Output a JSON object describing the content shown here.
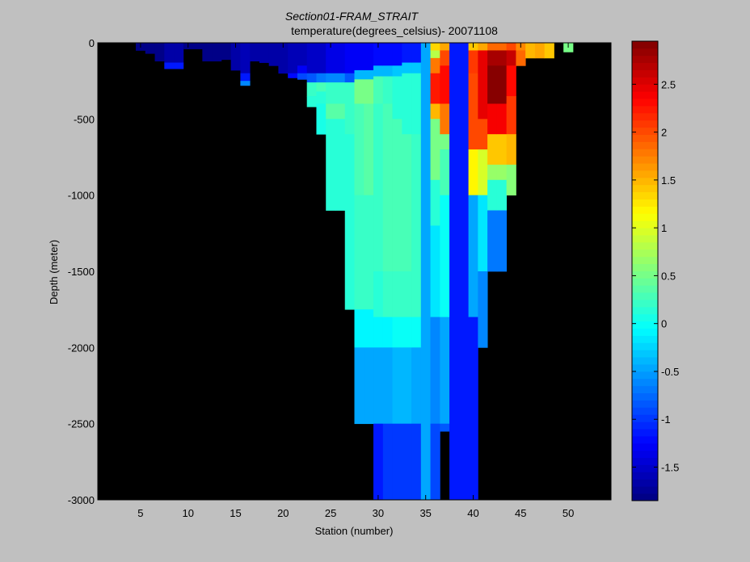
{
  "chart_data": {
    "type": "heatmap",
    "title": "Section01-FRAM_STRAIT",
    "subtitle": "temperature(degrees_celsius)- 20071108",
    "xlabel": "Station (number)",
    "ylabel": "Depth (meter)",
    "xlim": [
      0.5,
      54.5
    ],
    "ylim": [
      -3000,
      0
    ],
    "x_ticks": [
      "5",
      "10",
      "15",
      "20",
      "25",
      "30",
      "35",
      "40",
      "45",
      "50"
    ],
    "y_ticks": [
      "0",
      "-500",
      "-1000",
      "-1500",
      "-2000",
      "-2500",
      "-3000"
    ],
    "colorbar": {
      "range": [
        -1.85,
        2.95
      ],
      "ticks": [
        "-1.5",
        "-1",
        "-0.5",
        "0",
        "0.5",
        "1",
        "1.5",
        "2",
        "2.5"
      ],
      "colormap": "jet"
    },
    "background_color": "#000000",
    "stations": [
      {
        "x": 5,
        "layers": [
          [
            0,
            50,
            -1.8
          ]
        ]
      },
      {
        "x": 6,
        "layers": [
          [
            0,
            70,
            -1.8
          ]
        ]
      },
      {
        "x": 7,
        "layers": [
          [
            0,
            120,
            -1.8
          ]
        ]
      },
      {
        "x": 8,
        "layers": [
          [
            0,
            130,
            -1.7
          ],
          [
            130,
            170,
            -1.1
          ]
        ]
      },
      {
        "x": 9,
        "layers": [
          [
            0,
            130,
            -1.7
          ],
          [
            130,
            170,
            -1.1
          ]
        ]
      },
      {
        "x": 10,
        "layers": [
          [
            0,
            40,
            -1.8
          ]
        ]
      },
      {
        "x": 11,
        "layers": [
          [
            0,
            40,
            -1.8
          ]
        ]
      },
      {
        "x": 12,
        "layers": [
          [
            0,
            120,
            -1.8
          ]
        ]
      },
      {
        "x": 13,
        "layers": [
          [
            0,
            120,
            -1.8
          ]
        ]
      },
      {
        "x": 14,
        "layers": [
          [
            0,
            110,
            -1.8
          ]
        ]
      },
      {
        "x": 15,
        "layers": [
          [
            0,
            180,
            -1.7
          ]
        ]
      },
      {
        "x": 16,
        "layers": [
          [
            0,
            200,
            -1.6
          ],
          [
            200,
            250,
            -1.1
          ],
          [
            250,
            280,
            -0.6
          ]
        ]
      },
      {
        "x": 17,
        "layers": [
          [
            0,
            120,
            -1.7
          ]
        ]
      },
      {
        "x": 18,
        "layers": [
          [
            0,
            130,
            -1.7
          ]
        ]
      },
      {
        "x": 19,
        "layers": [
          [
            0,
            150,
            -1.7
          ]
        ]
      },
      {
        "x": 20,
        "layers": [
          [
            0,
            200,
            -1.7
          ]
        ]
      },
      {
        "x": 21,
        "layers": [
          [
            0,
            200,
            -1.6
          ],
          [
            200,
            230,
            -1.2
          ]
        ]
      },
      {
        "x": 22,
        "layers": [
          [
            0,
            150,
            -1.6
          ],
          [
            150,
            200,
            -1.3
          ],
          [
            200,
            240,
            -0.9
          ]
        ]
      },
      {
        "x": 23,
        "layers": [
          [
            0,
            200,
            -1.5
          ],
          [
            200,
            260,
            -0.8
          ],
          [
            260,
            350,
            0.2
          ],
          [
            350,
            420,
            0.15
          ]
        ]
      },
      {
        "x": 24,
        "layers": [
          [
            0,
            200,
            -1.5
          ],
          [
            200,
            260,
            -0.7
          ],
          [
            260,
            320,
            0.3
          ],
          [
            320,
            400,
            0.1
          ],
          [
            400,
            600,
            0.05
          ]
        ]
      },
      {
        "x": 25,
        "layers": [
          [
            0,
            200,
            -1.4
          ],
          [
            200,
            260,
            -0.6
          ],
          [
            260,
            400,
            0.2
          ],
          [
            400,
            500,
            0.35
          ],
          [
            500,
            1100,
            0.1
          ]
        ]
      },
      {
        "x": 26,
        "layers": [
          [
            0,
            200,
            -1.4
          ],
          [
            200,
            260,
            -0.6
          ],
          [
            260,
            400,
            0.2
          ],
          [
            400,
            500,
            0.35
          ],
          [
            500,
            1100,
            0.1
          ]
        ]
      },
      {
        "x": 27,
        "layers": [
          [
            0,
            200,
            -1.3
          ],
          [
            200,
            260,
            -0.8
          ],
          [
            260,
            600,
            0.2
          ],
          [
            600,
            1750,
            0.15
          ]
        ]
      },
      {
        "x": 28,
        "layers": [
          [
            0,
            180,
            -1.3
          ],
          [
            180,
            240,
            -0.4
          ],
          [
            240,
            400,
            0.5
          ],
          [
            400,
            1000,
            0.3
          ],
          [
            1000,
            1750,
            0.2
          ],
          [
            1750,
            2000,
            -0.1
          ],
          [
            2000,
            2500,
            -0.5
          ]
        ]
      },
      {
        "x": 29,
        "layers": [
          [
            0,
            180,
            -1.3
          ],
          [
            180,
            240,
            -0.4
          ],
          [
            240,
            400,
            0.5
          ],
          [
            400,
            1000,
            0.35
          ],
          [
            1000,
            1750,
            0.2
          ],
          [
            1750,
            2000,
            -0.1
          ],
          [
            2000,
            2500,
            -0.5
          ]
        ]
      },
      {
        "x": 30,
        "layers": [
          [
            0,
            150,
            -1.2
          ],
          [
            150,
            220,
            -0.4
          ],
          [
            220,
            400,
            0.3
          ],
          [
            400,
            1500,
            0.25
          ],
          [
            1500,
            1800,
            0.15
          ],
          [
            1800,
            2000,
            -0.1
          ],
          [
            2000,
            2500,
            -0.45
          ],
          [
            2500,
            3000,
            -1.1
          ]
        ]
      },
      {
        "x": 31,
        "layers": [
          [
            0,
            150,
            -1.2
          ],
          [
            150,
            220,
            -0.4
          ],
          [
            220,
            400,
            0.2
          ],
          [
            400,
            1500,
            0.3
          ],
          [
            1500,
            1800,
            0.2
          ],
          [
            1800,
            2000,
            -0.05
          ],
          [
            2000,
            2500,
            -0.45
          ],
          [
            2500,
            3000,
            -1.0
          ]
        ]
      },
      {
        "x": 32,
        "layers": [
          [
            0,
            150,
            -1.2
          ],
          [
            150,
            220,
            -0.3
          ],
          [
            220,
            500,
            0.1
          ],
          [
            500,
            1500,
            0.3
          ],
          [
            1500,
            1800,
            0.2
          ],
          [
            1800,
            2000,
            0.0
          ],
          [
            2000,
            2500,
            -0.4
          ],
          [
            2500,
            3000,
            -1.0
          ]
        ]
      },
      {
        "x": 33,
        "layers": [
          [
            0,
            130,
            -1.1
          ],
          [
            130,
            200,
            -0.3
          ],
          [
            200,
            600,
            0.1
          ],
          [
            600,
            1500,
            0.3
          ],
          [
            1500,
            1800,
            0.2
          ],
          [
            1800,
            2000,
            0.0
          ],
          [
            2000,
            2500,
            -0.4
          ],
          [
            2500,
            3000,
            -1.0
          ]
        ]
      },
      {
        "x": 34,
        "layers": [
          [
            0,
            130,
            -1.1
          ],
          [
            130,
            200,
            -0.3
          ],
          [
            200,
            600,
            0.15
          ],
          [
            600,
            1500,
            0.25
          ],
          [
            1500,
            1800,
            0.2
          ],
          [
            1800,
            2000,
            0.0
          ],
          [
            2000,
            2500,
            -0.45
          ],
          [
            2500,
            3000,
            -1.0
          ]
        ]
      },
      {
        "x": 35,
        "layers": [
          [
            0,
            3000,
            -0.5
          ]
        ]
      },
      {
        "x": 36,
        "layers": [
          [
            0,
            50,
            1.3
          ],
          [
            50,
            100,
            0.8
          ],
          [
            100,
            200,
            1.8
          ],
          [
            200,
            400,
            2.2
          ],
          [
            400,
            500,
            1.5
          ],
          [
            500,
            900,
            0.5
          ],
          [
            900,
            1200,
            0.1
          ],
          [
            1200,
            1800,
            -0.2
          ],
          [
            1800,
            2500,
            -0.6
          ],
          [
            2500,
            3000,
            -0.9
          ]
        ]
      },
      {
        "x": 37,
        "layers": [
          [
            0,
            50,
            1.6
          ],
          [
            50,
            150,
            2.0
          ],
          [
            150,
            400,
            2.3
          ],
          [
            400,
            600,
            1.8
          ],
          [
            600,
            700,
            0.5
          ],
          [
            700,
            1000,
            0.3
          ],
          [
            1000,
            1800,
            0.0
          ],
          [
            1800,
            2500,
            -0.5
          ],
          [
            2500,
            2550,
            -0.8
          ]
        ]
      },
      {
        "x": 38,
        "layers": [
          [
            0,
            3000,
            -1.15
          ]
        ]
      },
      {
        "x": 39,
        "layers": [
          [
            0,
            3000,
            -1.15
          ]
        ]
      },
      {
        "x": 40,
        "layers": [
          [
            0,
            50,
            1.4
          ],
          [
            50,
            200,
            2.1
          ],
          [
            200,
            700,
            2.0
          ],
          [
            700,
            1000,
            1.2
          ],
          [
            1000,
            1800,
            -0.5
          ],
          [
            1800,
            3000,
            -1.1
          ]
        ]
      },
      {
        "x": 41,
        "layers": [
          [
            0,
            50,
            1.6
          ],
          [
            50,
            200,
            2.5
          ],
          [
            200,
            500,
            2.5
          ],
          [
            500,
            700,
            2.0
          ],
          [
            700,
            1000,
            1.0
          ],
          [
            1000,
            1500,
            -0.2
          ],
          [
            1500,
            2000,
            -0.6
          ]
        ]
      },
      {
        "x": 42,
        "layers": [
          [
            0,
            50,
            1.9
          ],
          [
            50,
            150,
            2.8
          ],
          [
            150,
            400,
            2.9
          ],
          [
            400,
            600,
            2.4
          ],
          [
            600,
            800,
            1.4
          ],
          [
            800,
            900,
            0.7
          ],
          [
            900,
            1100,
            0.1
          ],
          [
            1100,
            1500,
            -0.7
          ]
        ]
      },
      {
        "x": 43,
        "layers": [
          [
            0,
            50,
            1.9
          ],
          [
            50,
            150,
            2.8
          ],
          [
            150,
            400,
            2.9
          ],
          [
            400,
            600,
            2.4
          ],
          [
            600,
            800,
            1.4
          ],
          [
            800,
            900,
            0.7
          ],
          [
            900,
            1100,
            0.1
          ],
          [
            1100,
            1500,
            -0.7
          ]
        ]
      },
      {
        "x": 44,
        "layers": [
          [
            0,
            50,
            2.0
          ],
          [
            50,
            150,
            2.6
          ],
          [
            150,
            350,
            2.3
          ],
          [
            350,
            600,
            2.1
          ],
          [
            600,
            800,
            1.5
          ],
          [
            800,
            1000,
            0.6
          ]
        ]
      },
      {
        "x": 45,
        "layers": [
          [
            0,
            50,
            1.7
          ],
          [
            50,
            150,
            1.9
          ]
        ]
      },
      {
        "x": 46,
        "layers": [
          [
            0,
            100,
            1.5
          ]
        ]
      },
      {
        "x": 47,
        "layers": [
          [
            0,
            100,
            1.6
          ]
        ]
      },
      {
        "x": 48,
        "layers": [
          [
            0,
            100,
            1.4
          ]
        ]
      },
      {
        "x": 50,
        "layers": [
          [
            0,
            60,
            0.5
          ]
        ]
      }
    ]
  }
}
